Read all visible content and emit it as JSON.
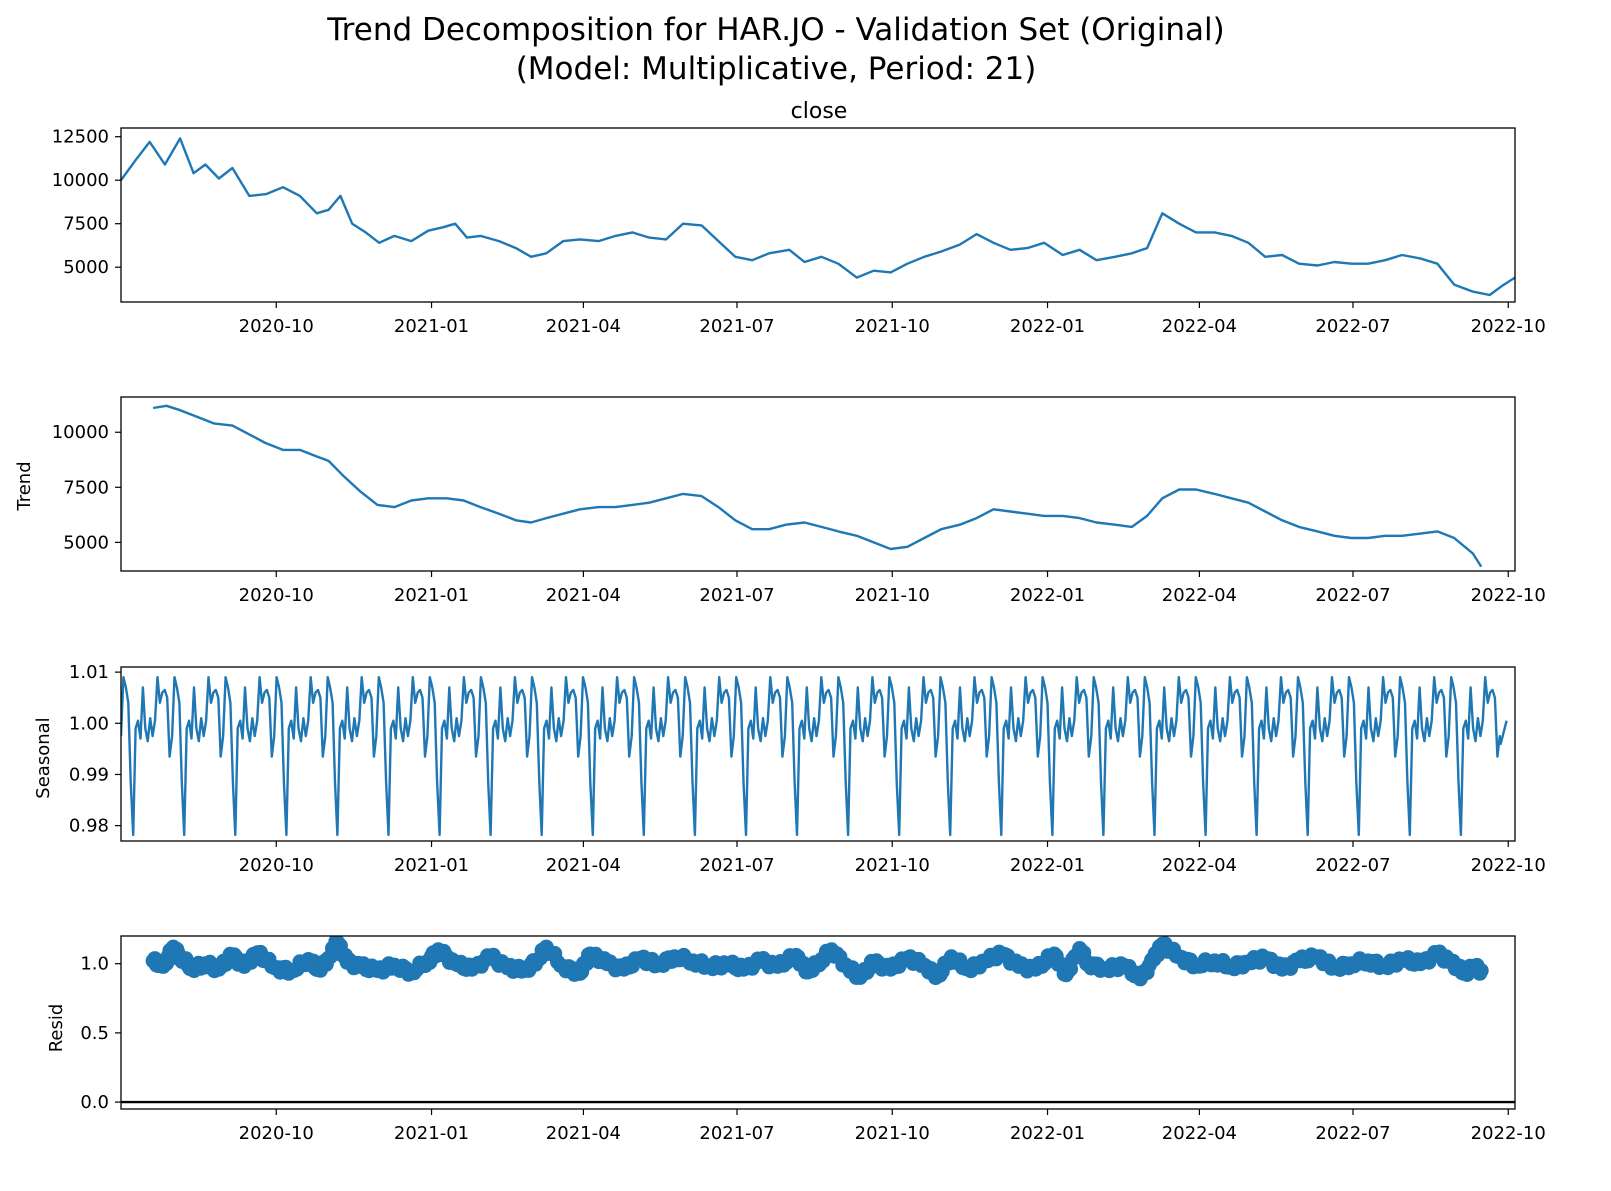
{
  "figure": {
    "title_line1": "Trend Decomposition for HAR.JO - Validation Set (Original)",
    "title_line2": "(Model: Multiplicative, Period: 21)"
  },
  "colors": {
    "series": "#1f77b4",
    "axis": "#000000",
    "zero_line": "#000000"
  },
  "chart_data": [
    {
      "type": "line",
      "title": "close",
      "ylabel": "",
      "xlim": [
        "2020-07-01",
        "2022-10-05"
      ],
      "ylim": [
        3000,
        13000
      ],
      "xticks": [
        "2020-10",
        "2021-01",
        "2021-04",
        "2021-07",
        "2021-10",
        "2022-01",
        "2022-04",
        "2022-07",
        "2022-10"
      ],
      "yticks": [
        5000,
        7500,
        10000,
        12500
      ],
      "series": [
        {
          "x": [
            "2020-07-01",
            "2020-07-10",
            "2020-07-18",
            "2020-07-27",
            "2020-08-05",
            "2020-08-13",
            "2020-08-20",
            "2020-08-28",
            "2020-09-05",
            "2020-09-15",
            "2020-09-25",
            "2020-10-05",
            "2020-10-15",
            "2020-10-25",
            "2020-11-01",
            "2020-11-08",
            "2020-11-15",
            "2020-11-23",
            "2020-12-01",
            "2020-12-10",
            "2020-12-20",
            "2020-12-30",
            "2021-01-08",
            "2021-01-15",
            "2021-01-22",
            "2021-01-30",
            "2021-02-10",
            "2021-02-20",
            "2021-03-01",
            "2021-03-10",
            "2021-03-20",
            "2021-03-30",
            "2021-04-10",
            "2021-04-20",
            "2021-04-30",
            "2021-05-10",
            "2021-05-20",
            "2021-05-30",
            "2021-06-10",
            "2021-06-20",
            "2021-06-30",
            "2021-07-10",
            "2021-07-20",
            "2021-08-01",
            "2021-08-10",
            "2021-08-20",
            "2021-08-30",
            "2021-09-10",
            "2021-09-20",
            "2021-09-30",
            "2021-10-10",
            "2021-10-20",
            "2021-10-30",
            "2021-11-10",
            "2021-11-20",
            "2021-11-30",
            "2021-12-10",
            "2021-12-20",
            "2021-12-30",
            "2022-01-10",
            "2022-01-20",
            "2022-01-30",
            "2022-02-10",
            "2022-02-20",
            "2022-03-01",
            "2022-03-10",
            "2022-03-20",
            "2022-03-30",
            "2022-04-10",
            "2022-04-20",
            "2022-04-30",
            "2022-05-10",
            "2022-05-20",
            "2022-05-30",
            "2022-06-10",
            "2022-06-20",
            "2022-06-30",
            "2022-07-10",
            "2022-07-20",
            "2022-07-30",
            "2022-08-10",
            "2022-08-20",
            "2022-08-30",
            "2022-09-10",
            "2022-09-20",
            "2022-09-27",
            "2022-10-05"
          ],
          "values": [
            10000,
            11200,
            12200,
            10900,
            12400,
            10400,
            10900,
            10100,
            10700,
            9100,
            9200,
            9600,
            9100,
            8100,
            8300,
            9100,
            7500,
            7000,
            6400,
            6800,
            6500,
            7100,
            7300,
            7500,
            6700,
            6800,
            6500,
            6100,
            5600,
            5800,
            6500,
            6600,
            6500,
            6800,
            7000,
            6700,
            6600,
            7500,
            7400,
            6500,
            5600,
            5400,
            5800,
            6000,
            5300,
            5600,
            5200,
            4400,
            4800,
            4700,
            5200,
            5600,
            5900,
            6300,
            6900,
            6400,
            6000,
            6100,
            6400,
            5700,
            6000,
            5400,
            5600,
            5800,
            6100,
            8100,
            7500,
            7000,
            7000,
            6800,
            6400,
            5600,
            5700,
            5200,
            5100,
            5300,
            5200,
            5200,
            5400,
            5700,
            5500,
            5200,
            4000,
            3600,
            3400,
            3900,
            4400
          ]
        }
      ]
    },
    {
      "type": "line",
      "title": "",
      "ylabel": "Trend",
      "xlim": [
        "2020-07-01",
        "2022-10-05"
      ],
      "ylim": [
        3700,
        11600
      ],
      "xticks": [
        "2020-10",
        "2021-01",
        "2021-04",
        "2021-07",
        "2021-10",
        "2022-01",
        "2022-04",
        "2022-07",
        "2022-10"
      ],
      "yticks": [
        5000,
        7500,
        10000
      ],
      "series": [
        {
          "x": [
            "2020-07-20",
            "2020-07-28",
            "2020-08-05",
            "2020-08-15",
            "2020-08-25",
            "2020-09-05",
            "2020-09-15",
            "2020-09-25",
            "2020-10-05",
            "2020-10-15",
            "2020-10-25",
            "2020-11-01",
            "2020-11-10",
            "2020-11-20",
            "2020-11-30",
            "2020-12-10",
            "2020-12-20",
            "2020-12-30",
            "2021-01-10",
            "2021-01-20",
            "2021-01-30",
            "2021-02-10",
            "2021-02-20",
            "2021-03-01",
            "2021-03-10",
            "2021-03-20",
            "2021-03-30",
            "2021-04-10",
            "2021-04-20",
            "2021-04-30",
            "2021-05-10",
            "2021-05-20",
            "2021-05-30",
            "2021-06-10",
            "2021-06-20",
            "2021-06-30",
            "2021-07-10",
            "2021-07-20",
            "2021-07-30",
            "2021-08-10",
            "2021-08-20",
            "2021-08-30",
            "2021-09-10",
            "2021-09-20",
            "2021-09-30",
            "2021-10-10",
            "2021-10-20",
            "2021-10-30",
            "2021-11-10",
            "2021-11-20",
            "2021-11-30",
            "2021-12-10",
            "2021-12-20",
            "2021-12-30",
            "2022-01-10",
            "2022-01-20",
            "2022-01-30",
            "2022-02-10",
            "2022-02-20",
            "2022-03-01",
            "2022-03-10",
            "2022-03-20",
            "2022-03-30",
            "2022-04-10",
            "2022-04-20",
            "2022-04-30",
            "2022-05-10",
            "2022-05-20",
            "2022-05-30",
            "2022-06-10",
            "2022-06-20",
            "2022-06-30",
            "2022-07-10",
            "2022-07-20",
            "2022-07-30",
            "2022-08-10",
            "2022-08-20",
            "2022-08-30",
            "2022-09-10",
            "2022-09-15"
          ],
          "values": [
            11100,
            11200,
            11000,
            10700,
            10400,
            10300,
            9900,
            9500,
            9200,
            9200,
            8900,
            8700,
            8000,
            7300,
            6700,
            6600,
            6900,
            7000,
            7000,
            6900,
            6600,
            6300,
            6000,
            5900,
            6100,
            6300,
            6500,
            6600,
            6600,
            6700,
            6800,
            7000,
            7200,
            7100,
            6600,
            6000,
            5600,
            5600,
            5800,
            5900,
            5700,
            5500,
            5300,
            5000,
            4700,
            4800,
            5200,
            5600,
            5800,
            6100,
            6500,
            6400,
            6300,
            6200,
            6200,
            6100,
            5900,
            5800,
            5700,
            6200,
            7000,
            7400,
            7400,
            7200,
            7000,
            6800,
            6400,
            6000,
            5700,
            5500,
            5300,
            5200,
            5200,
            5300,
            5300,
            5400,
            5500,
            5200,
            4500,
            3900
          ]
        }
      ]
    },
    {
      "type": "line",
      "title": "",
      "ylabel": "Seasonal",
      "xlim": [
        "2020-07-01",
        "2022-10-05"
      ],
      "ylim": [
        0.977,
        1.011
      ],
      "xticks": [
        "2020-10",
        "2021-01",
        "2021-04",
        "2021-07",
        "2021-10",
        "2022-01",
        "2022-04",
        "2022-07",
        "2022-10"
      ],
      "yticks": [
        "0.98",
        "0.99",
        "1.00",
        "1.01"
      ],
      "period": 21,
      "series": [
        {
          "pattern": [
            0.9975,
            1.009,
            1.007,
            1.004,
            0.9885,
            0.9782,
            0.999,
            1.0005,
            0.997,
            1.007,
            0.999,
            0.9965,
            1.001,
            0.9975,
            1.0005,
            1.009,
            1.004,
            1.006,
            1.0065,
            1.005,
            0.9935
          ]
        }
      ]
    },
    {
      "type": "scatter",
      "title": "",
      "ylabel": "Resid",
      "xlim": [
        "2020-07-01",
        "2022-10-05"
      ],
      "ylim": [
        -0.05,
        1.2
      ],
      "xticks": [
        "2020-10",
        "2021-01",
        "2021-04",
        "2021-07",
        "2021-10",
        "2022-01",
        "2022-04",
        "2022-07",
        "2022-10"
      ],
      "yticks": [
        "0.0",
        "0.5",
        "1.0"
      ],
      "baseline": 0,
      "series": [
        {
          "x": [
            "2020-07-20",
            "2020-07-26",
            "2020-08-01",
            "2020-08-05",
            "2020-08-12",
            "2020-08-20",
            "2020-08-28",
            "2020-09-05",
            "2020-09-12",
            "2020-09-20",
            "2020-09-30",
            "2020-10-10",
            "2020-10-20",
            "2020-10-26",
            "2020-11-02",
            "2020-11-06",
            "2020-11-12",
            "2020-11-20",
            "2020-11-30",
            "2020-12-10",
            "2020-12-20",
            "2020-12-30",
            "2021-01-05",
            "2021-01-15",
            "2021-01-25",
            "2021-02-05",
            "2021-02-15",
            "2021-02-25",
            "2021-03-05",
            "2021-03-10",
            "2021-03-20",
            "2021-03-30",
            "2021-04-05",
            "2021-04-15",
            "2021-04-25",
            "2021-05-05",
            "2021-05-15",
            "2021-05-25",
            "2021-06-05",
            "2021-06-15",
            "2021-06-25",
            "2021-07-05",
            "2021-07-15",
            "2021-07-25",
            "2021-08-05",
            "2021-08-12",
            "2021-08-20",
            "2021-08-26",
            "2021-09-05",
            "2021-09-12",
            "2021-09-20",
            "2021-09-30",
            "2021-10-10",
            "2021-10-20",
            "2021-10-28",
            "2021-11-05",
            "2021-11-15",
            "2021-11-25",
            "2021-12-05",
            "2021-12-15",
            "2021-12-25",
            "2022-01-05",
            "2022-01-12",
            "2022-01-20",
            "2022-01-25",
            "2022-02-05",
            "2022-02-15",
            "2022-02-25",
            "2022-03-05",
            "2022-03-10",
            "2022-03-20",
            "2022-03-30",
            "2022-04-10",
            "2022-04-20",
            "2022-04-30",
            "2022-05-10",
            "2022-05-20",
            "2022-05-30",
            "2022-06-10",
            "2022-06-20",
            "2022-06-30",
            "2022-07-10",
            "2022-07-20",
            "2022-07-30",
            "2022-08-10",
            "2022-08-20",
            "2022-08-28",
            "2022-09-05",
            "2022-09-10",
            "2022-09-15"
          ],
          "values": [
            1.02,
            0.98,
            1.12,
            1.05,
            0.97,
            1.0,
            0.96,
            1.06,
            0.98,
            1.08,
            0.97,
            0.95,
            1.03,
            0.96,
            1.05,
            1.16,
            1.01,
            0.98,
            0.95,
            0.99,
            0.94,
            1.02,
            1.1,
            1.0,
            0.96,
            1.05,
            0.97,
            0.95,
            1.03,
            1.12,
            0.98,
            0.93,
            1.07,
            1.0,
            0.96,
            1.04,
            0.99,
            1.05,
            1.02,
            0.98,
            1.0,
            0.96,
            1.02,
            0.98,
            1.06,
            0.94,
            1.03,
            1.1,
            0.97,
            0.9,
            1.01,
            0.96,
            1.04,
            0.99,
            0.91,
            1.05,
            0.96,
            1.02,
            1.07,
            0.98,
            0.96,
            1.07,
            0.92,
            1.11,
            1.0,
            0.96,
            0.99,
            0.89,
            1.03,
            1.14,
            1.05,
            0.99,
            1.02,
            0.98,
            1.01,
            1.04,
            0.96,
            1.02,
            1.05,
            0.97,
            1.0,
            1.02,
            0.98,
            1.03,
            1.0,
            1.07,
            1.01,
            0.93,
            0.98,
            0.95
          ]
        }
      ]
    }
  ]
}
